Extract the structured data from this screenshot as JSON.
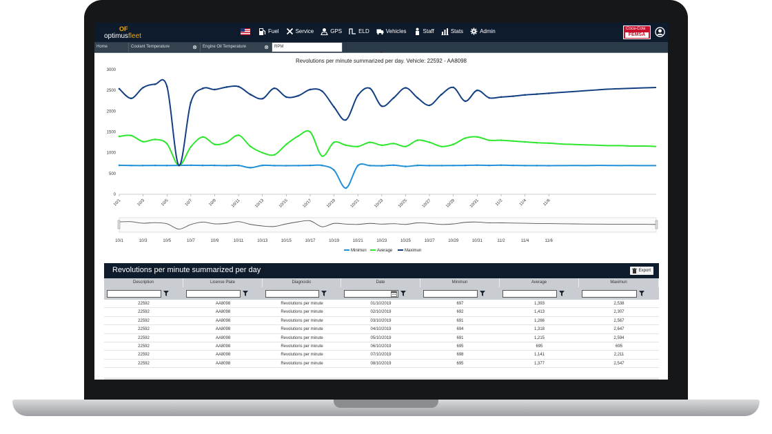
{
  "app": {
    "logo_mark": "OF",
    "logo_name_a": "optimus",
    "logo_name_b": "fleet",
    "nav": [
      {
        "label": "Fuel",
        "icon": "fuel-pump-icon"
      },
      {
        "label": "Service",
        "icon": "tools-icon"
      },
      {
        "label": "GPS",
        "icon": "map-pin-icon"
      },
      {
        "label": "ELD",
        "icon": "eld-signal-icon"
      },
      {
        "label": "Vehicles",
        "icon": "truck-icon"
      },
      {
        "label": "Staff",
        "icon": "person-icon"
      },
      {
        "label": "Stats",
        "icon": "bar-chart-icon"
      },
      {
        "label": "Admin",
        "icon": "gear-icon"
      }
    ],
    "brand_top": "Coca-Cola",
    "brand_bottom": "FEMSA"
  },
  "tabs": [
    {
      "label": "Home",
      "closable": false,
      "active": false
    },
    {
      "label": "Coolant Temperature",
      "closable": true,
      "active": false
    },
    {
      "label": "Engine Oil Temperature",
      "closable": true,
      "active": false
    },
    {
      "label": "RPM",
      "closable": false,
      "active": true
    }
  ],
  "chart_data": {
    "type": "line",
    "title": "Revolutions per minute summarized per day. Vehicle: 22592 - AA8098",
    "xlabel": "",
    "ylabel": "",
    "ylim": [
      0,
      3000
    ],
    "yticks": [
      "0",
      "500",
      "1000",
      "1500",
      "2000",
      "2500",
      "3000"
    ],
    "x_ticks": [
      "10/1",
      "10/3",
      "10/5",
      "10/7",
      "10/9",
      "10/11",
      "10/13",
      "10/15",
      "10/17",
      "10/19",
      "10/21",
      "10/23",
      "10/25",
      "10/27",
      "10/29",
      "10/31",
      "11/2",
      "11/4",
      "11/6"
    ],
    "navigator_ticks": [
      "10/1",
      "10/3",
      "10/5",
      "10/7",
      "10/9",
      "10/11",
      "10/13",
      "10/15",
      "10/17",
      "10/19",
      "10/21",
      "10/23",
      "10/25",
      "10/27",
      "10/29",
      "10/31",
      "11/2",
      "11/4",
      "11/6"
    ],
    "legend_position": "bottom-center",
    "grid": false,
    "series": [
      {
        "name": "Minimun",
        "color": "#1f8fd6",
        "values": [
          697,
          692,
          691,
          694,
          691,
          695,
          698,
          695,
          695,
          690,
          693,
          640,
          695,
          690,
          688,
          690,
          695,
          693,
          580,
          150,
          690,
          690,
          685,
          700,
          670,
          695,
          690,
          690,
          692,
          695,
          700,
          695,
          700,
          695,
          690,
          690,
          688,
          690,
          692,
          690,
          695,
          692,
          690,
          692,
          690,
          690
        ]
      },
      {
        "name": "Average",
        "color": "#2ee62e",
        "values": [
          1393,
          1413,
          1266,
          1318,
          1215,
          695,
          1141,
          1377,
          1200,
          1250,
          1420,
          1150,
          1000,
          950,
          1200,
          1400,
          1500,
          920,
          1250,
          1180,
          1150,
          1250,
          1180,
          1220,
          1150,
          1300,
          1250,
          1150,
          1200,
          1350,
          1380,
          1300,
          1300,
          1280,
          1260,
          1240,
          1230,
          1210,
          1200,
          1190,
          1180,
          1170,
          1170,
          1160,
          1160,
          1150
        ]
      },
      {
        "name": "Maximun",
        "color": "#123f82",
        "values": [
          2538,
          2307,
          2567,
          2647,
          2594,
          695,
          2211,
          2547,
          2520,
          2580,
          2590,
          2400,
          2300,
          2550,
          2340,
          2370,
          2520,
          2480,
          2100,
          1790,
          2380,
          2550,
          2120,
          2320,
          2560,
          2320,
          2140,
          2400,
          2570,
          2240,
          2500,
          2320,
          2340,
          2360,
          2390,
          2410,
          2430,
          2450,
          2470,
          2490,
          2510,
          2530,
          2540,
          2550,
          2560,
          2570
        ]
      }
    ]
  },
  "grid": {
    "title": "Revolutions per minute summarized per day",
    "export_label": "Export",
    "columns": [
      "Description",
      "License Plate",
      "Diagnostic",
      "Date",
      "Minimun",
      "Average",
      "Maximun"
    ],
    "rows": [
      [
        "22592",
        "AA8098",
        "Revolutions per minute",
        "01/10/2019",
        "697",
        "1,393",
        "2,538"
      ],
      [
        "22592",
        "AA8098",
        "Revolutions per minute",
        "02/10/2019",
        "692",
        "1,413",
        "2,307"
      ],
      [
        "22592",
        "AA8098",
        "Revolutions per minute",
        "03/10/2019",
        "691",
        "1,266",
        "2,567"
      ],
      [
        "22592",
        "AA8098",
        "Revolutions per minute",
        "04/10/2019",
        "694",
        "1,318",
        "2,647"
      ],
      [
        "22592",
        "AA8098",
        "Revolutions per minute",
        "05/10/2019",
        "691",
        "1,215",
        "2,594"
      ],
      [
        "22592",
        "AA8098",
        "Revolutions per minute",
        "06/10/2019",
        "695",
        "695",
        "695"
      ],
      [
        "22592",
        "AA8098",
        "Revolutions per minute",
        "07/10/2019",
        "698",
        "1,141",
        "2,211"
      ],
      [
        "22592",
        "AA8098",
        "Revolutions per minute",
        "08/10/2019",
        "695",
        "1,377",
        "2,547"
      ]
    ]
  }
}
